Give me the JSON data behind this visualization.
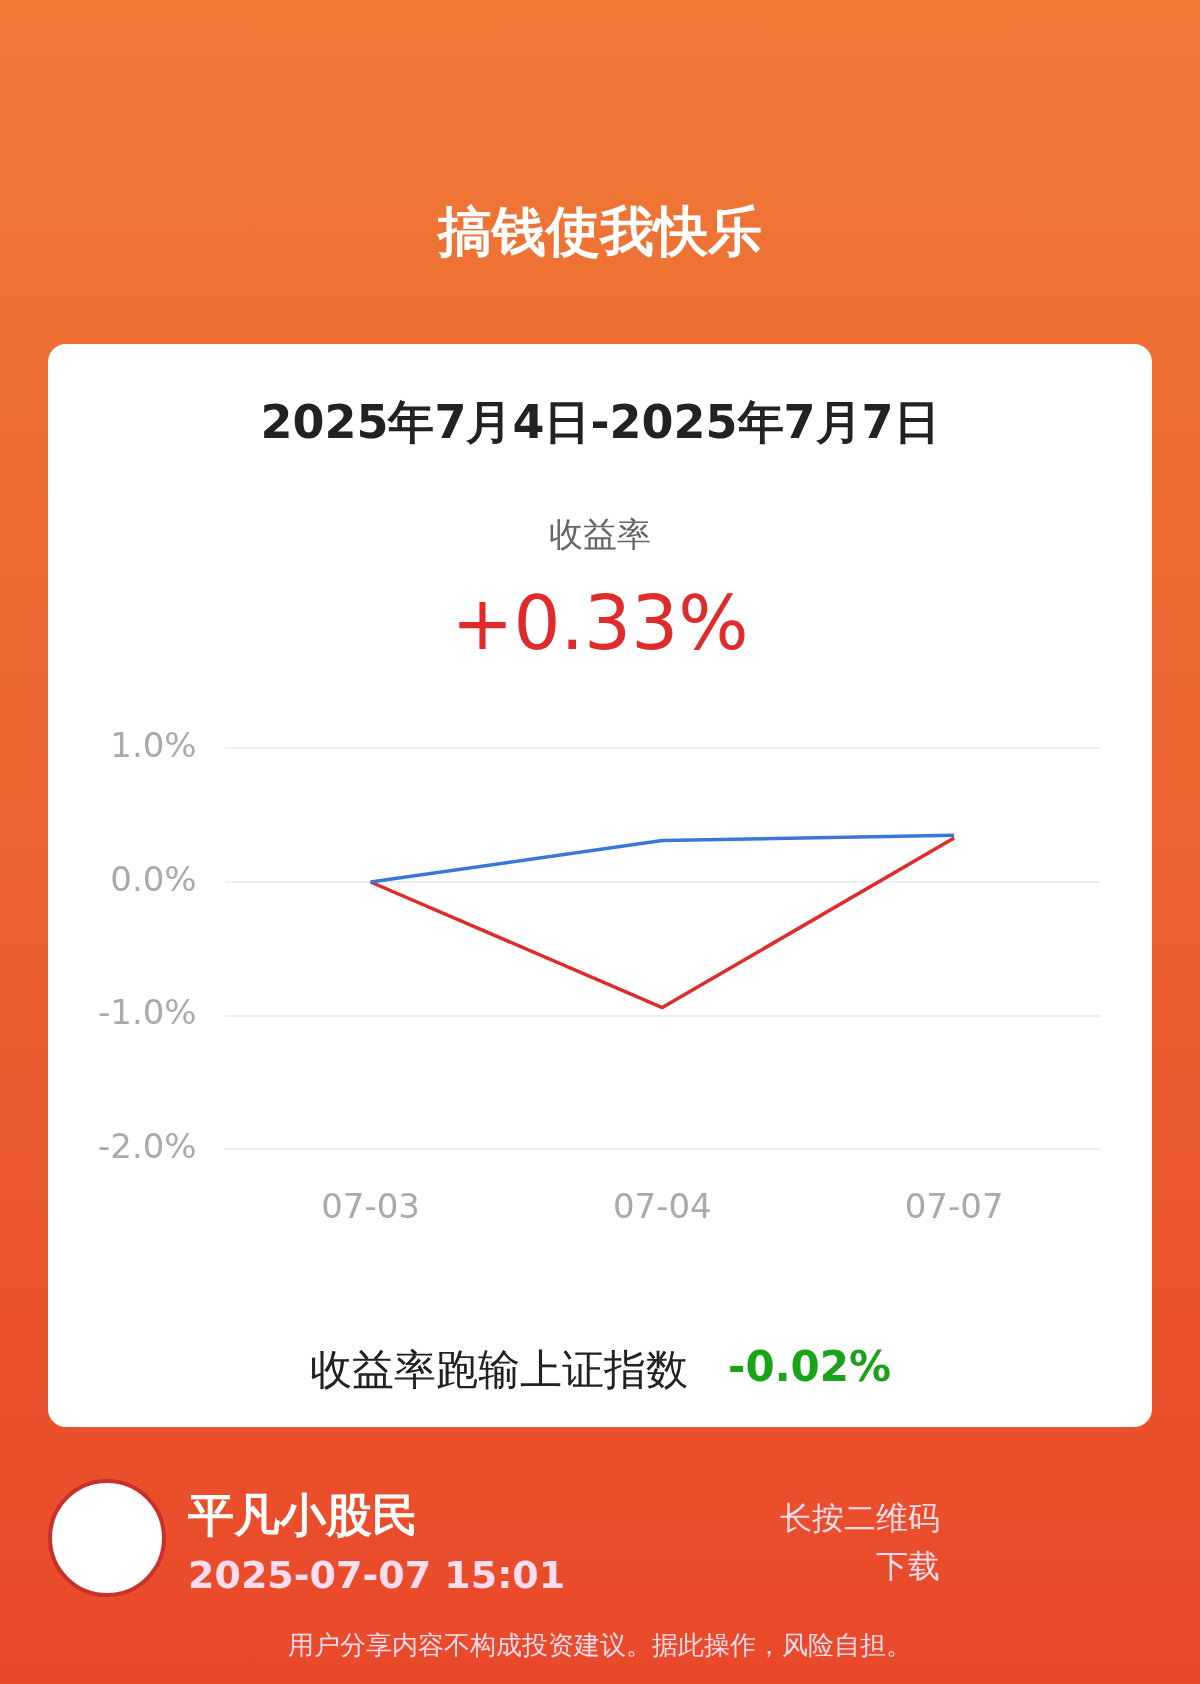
{
  "chart_data": {
    "type": "line",
    "title": "搞钱使我快乐",
    "subtitle": "2025年7月4日-2025年7月7日",
    "annotations": [
      "收益率",
      "+0.33%",
      "收益率跑输上证指数",
      "-0.02%",
      "平凡小股民",
      "2025-07-07 15:01",
      "长按二维码",
      "下载",
      "用户分享内容不构成投资建议。据此操作，风险自担。"
    ],
    "categories": [
      "07-03",
      "07-04",
      "07-07"
    ],
    "series": [
      {
        "color": "#3a78d8",
        "values": [
          0,
          0.31,
          0.35
        ]
      },
      {
        "color": "#e02b2b",
        "values": [
          0,
          -0.94,
          0.33
        ]
      }
    ],
    "ylim": [
      -2,
      1
    ],
    "yticks": [
      {
        "value": -2,
        "label": "-2.0%"
      },
      {
        "value": -1,
        "label": "-1.0%"
      },
      {
        "value": 0,
        "label": "0.0%"
      },
      {
        "value": 1,
        "label": "1.0%"
      }
    ],
    "grid": "y",
    "legend": false,
    "marker": "none",
    "line_style": "solid"
  }
}
